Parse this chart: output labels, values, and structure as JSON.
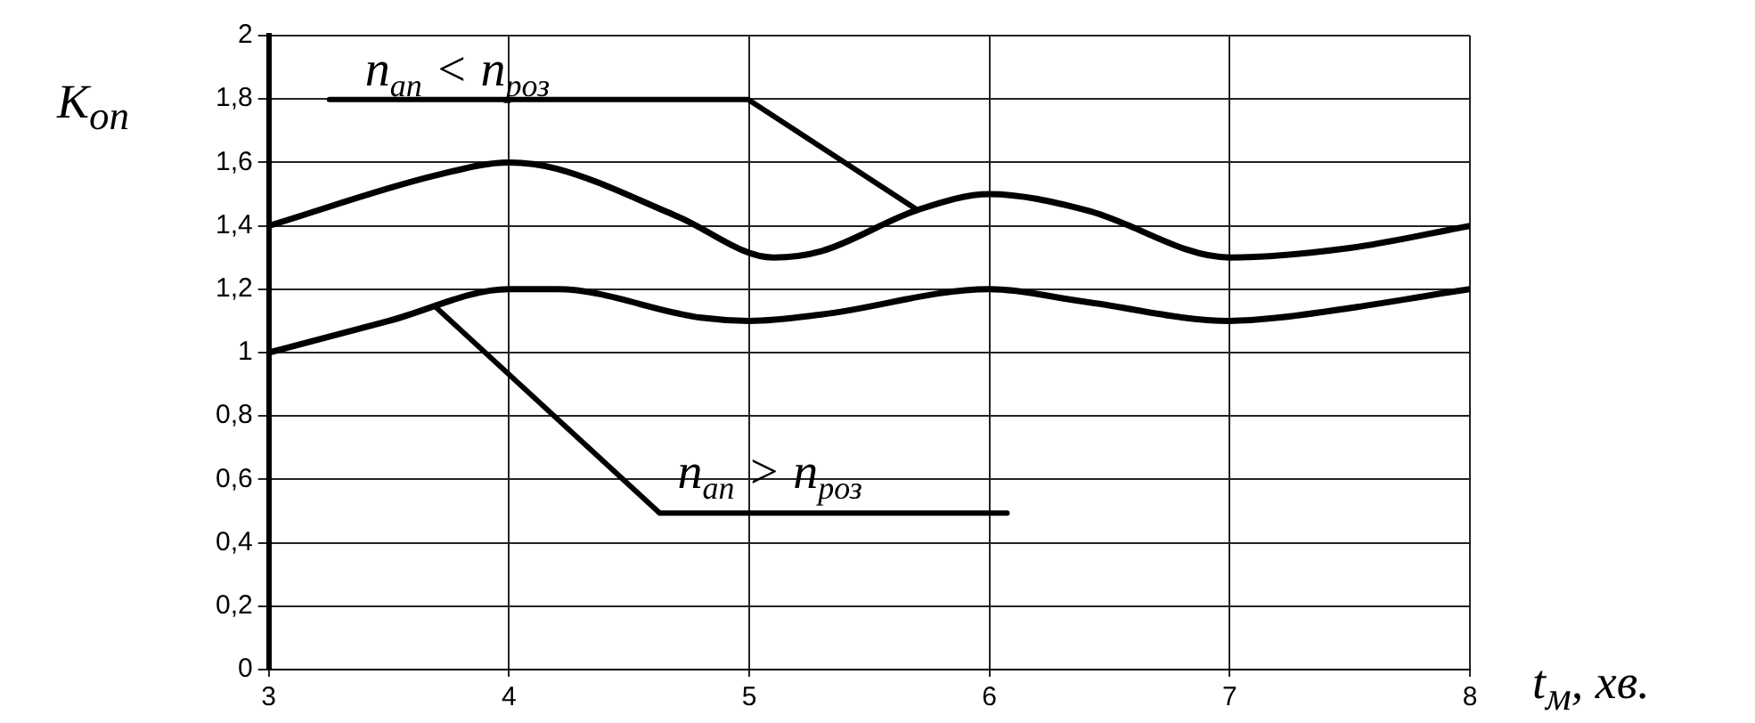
{
  "chart_data": {
    "type": "line",
    "xlabel": "t$_{м}$, хв.",
    "ylabel": "K$_{оп}$",
    "xlim": [
      3,
      8
    ],
    "xticks": [
      3,
      4,
      5,
      6,
      7,
      8
    ],
    "ylim": [
      0,
      2
    ],
    "yticks": [
      0,
      {
        "value": 0.2,
        "label": "0,2"
      },
      {
        "value": 0.4,
        "label": "0,4"
      },
      {
        "value": 0.6,
        "label": "0,6"
      },
      {
        "value": 0.8,
        "label": "0,8"
      },
      1,
      {
        "value": 1.2,
        "label": "1,2"
      },
      {
        "value": 1.4,
        "label": "1,4"
      },
      {
        "value": 1.6,
        "label": "1,6"
      },
      {
        "value": 1.8,
        "label": "1,8"
      },
      2
    ],
    "grid": true,
    "legend": false,
    "marker": "none",
    "line_style": "solid",
    "series": [
      {
        "color": "#000000",
        "x": [
          3,
          3.7,
          4,
          4.2,
          4.7,
          5.1,
          5.3,
          5.7,
          6,
          6.4,
          7,
          7.5,
          8
        ],
        "values": [
          1.4,
          1.56,
          1.6,
          1.58,
          1.43,
          1.3,
          1.32,
          1.45,
          1.5,
          1.45,
          1.3,
          1.33,
          1.4
        ]
      },
      {
        "color": "#000000",
        "x": [
          3,
          3.5,
          4,
          4.2,
          4.8,
          5,
          5.3,
          6,
          6.4,
          7,
          7.2,
          8
        ],
        "values": [
          1.0,
          1.1,
          1.2,
          1.2,
          1.11,
          1.1,
          1.12,
          1.2,
          1.16,
          1.1,
          1.11,
          1.2
        ]
      }
    ],
    "annotations": [
      {
        "text": "n$_{ап}$ < n$_{роз}$",
        "x": 5.7,
        "y": 1.45
      },
      {
        "text": "n$_{ап}$ > n$_{роз}$",
        "x": 3.7,
        "y": 1.14
      }
    ]
  }
}
